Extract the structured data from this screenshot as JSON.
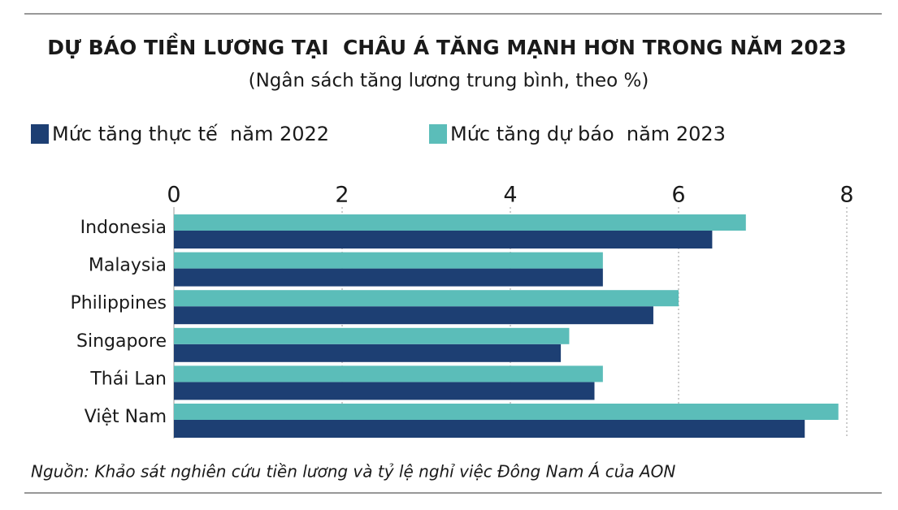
{
  "chart_data": {
    "type": "barh",
    "title": "DỰ BÁO TIỀN LƯƠNG TẠI  CHÂU Á TĂNG MẠNH HƠN TRONG NĂM 2023",
    "subtitle": "(Ngân sách tăng lương trung bình, theo %)",
    "source": "Nguồn: Khảo sát nghiên cứu tiền lương và tỷ lệ nghỉ việc Đông Nam Á của AON",
    "categories": [
      "Indonesia",
      "Malaysia",
      "Philippines",
      "Singapore",
      "Thái Lan",
      "Việt Nam"
    ],
    "series": [
      {
        "name": "Mức tăng thực tế  năm 2022",
        "color": "#1d3f73",
        "values": [
          6.4,
          5.1,
          5.7,
          4.6,
          5.0,
          7.5
        ]
      },
      {
        "name": "Mức tăng dự báo  năm 2023",
        "color": "#5bbdb9",
        "values": [
          6.8,
          5.1,
          6.0,
          4.7,
          5.1,
          7.9
        ]
      }
    ],
    "xlim": [
      0,
      8
    ],
    "xticks": [
      0,
      2,
      4,
      6,
      8
    ],
    "grid": true
  }
}
